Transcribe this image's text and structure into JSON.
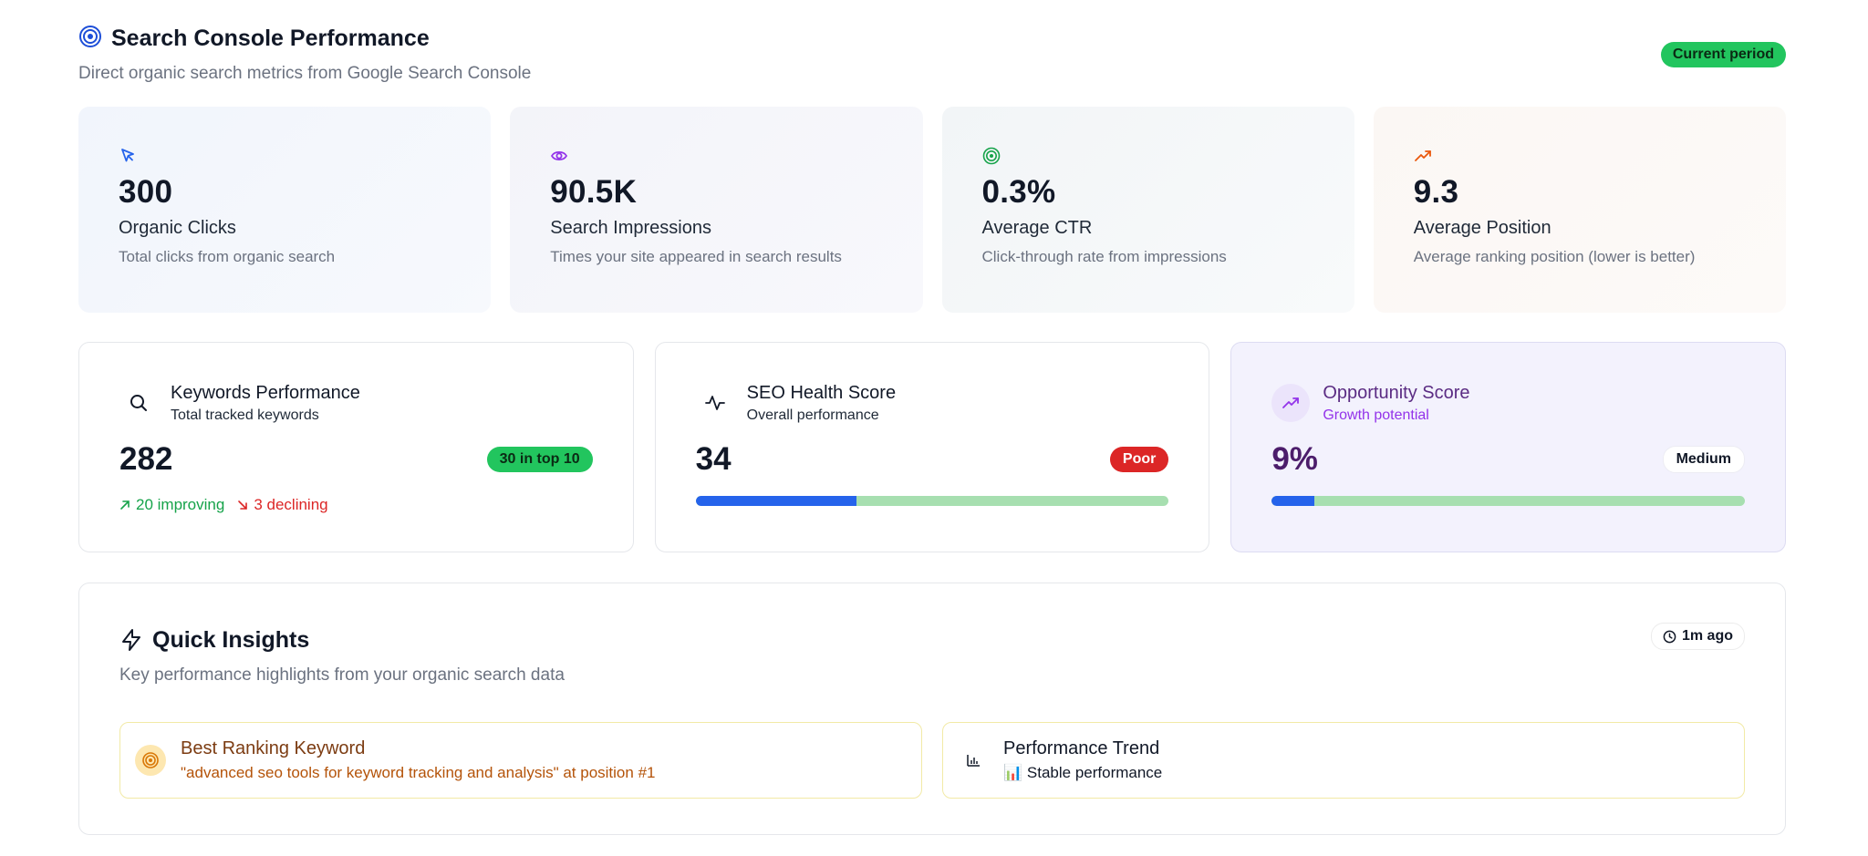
{
  "header": {
    "title": "Search Console Performance",
    "subtitle": "Direct organic search metrics from Google Search Console",
    "period_badge": "Current period",
    "icon": "target-icon"
  },
  "metrics": [
    {
      "icon": "cursor-icon",
      "value": "300",
      "label": "Organic Clicks",
      "description": "Total clicks from organic search",
      "accent": "#2563eb"
    },
    {
      "icon": "eye-icon",
      "value": "90.5K",
      "label": "Search Impressions",
      "description": "Times your site appeared in search results",
      "accent": "#9333ea"
    },
    {
      "icon": "target-icon",
      "value": "0.3%",
      "label": "Average CTR",
      "description": "Click-through rate from impressions",
      "accent": "#16a34a"
    },
    {
      "icon": "trending-up-icon",
      "value": "9.3",
      "label": "Average Position",
      "description": "Average ranking position (lower is better)",
      "accent": "#ea580c"
    }
  ],
  "keywords": {
    "icon": "search-icon",
    "title": "Keywords Performance",
    "subtitle": "Total tracked keywords",
    "value": "282",
    "badge": "30 in top 10",
    "improving": "20 improving",
    "declining": "3 declining"
  },
  "seo_health": {
    "icon": "activity-icon",
    "title": "SEO Health Score",
    "subtitle": "Overall performance",
    "value": "34",
    "badge": "Poor",
    "progress": 0.34
  },
  "opportunity": {
    "icon": "trending-up-icon",
    "title": "Opportunity Score",
    "subtitle": "Growth potential",
    "value": "9%",
    "badge": "Medium",
    "progress": 0.09
  },
  "insights": {
    "icon": "zap-icon",
    "title": "Quick Insights",
    "subtitle": "Key performance highlights from your organic search data",
    "time": "1m ago",
    "cards": [
      {
        "icon": "target-icon",
        "title": "Best Ranking Keyword",
        "description": "\"advanced seo tools for keyword tracking and analysis\" at position #1"
      },
      {
        "icon": "bar-chart-icon",
        "title": "Performance Trend",
        "description": "📊 Stable performance"
      }
    ]
  },
  "colors": {
    "success": "#22c55e",
    "danger": "#dc2626",
    "primary": "#2563eb",
    "track": "#a7dfb0"
  }
}
